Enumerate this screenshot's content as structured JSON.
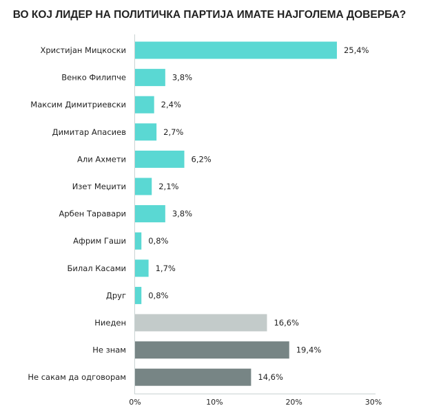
{
  "chart_data": {
    "type": "bar",
    "orientation": "horizontal",
    "title": "ВО КОЈ ЛИДЕР НА ПОЛИТИЧКА ПАРТИЈА ИМАТЕ НАЈГОЛЕМА ДОВЕРБА?",
    "xlabel": "",
    "ylabel": "",
    "xlim": [
      0,
      30
    ],
    "xticks": [
      0,
      10,
      20,
      30
    ],
    "xtick_labels": [
      "0%",
      "10%",
      "20%",
      "30%"
    ],
    "grid": false,
    "categories": [
      "Христијан Мицкоски",
      "Венко Филипче",
      "Максим Димитриевски",
      "Димитар Апасиев",
      "Али Ахмети",
      "Изет Меџити",
      "Арбен Таравари",
      "Африм Гаши",
      "Билал Касами",
      "Друг",
      "Ниеден",
      "Не знам",
      "Не сакам да одговорам"
    ],
    "values": [
      25.4,
      3.8,
      2.4,
      2.7,
      6.2,
      2.1,
      3.8,
      0.8,
      1.7,
      0.8,
      16.6,
      19.4,
      14.6
    ],
    "labels": [
      "25,4%",
      "3,8%",
      "2,4%",
      "2,7%",
      "6,2%",
      "2,1%",
      "3,8%",
      "0,8%",
      "1,7%",
      "0,8%",
      "16,6%",
      "19,4%",
      "14,6%"
    ],
    "colors": [
      "#5ad8d3",
      "#5ad8d3",
      "#5ad8d3",
      "#5ad8d3",
      "#5ad8d3",
      "#5ad8d3",
      "#5ad8d3",
      "#5ad8d3",
      "#5ad8d3",
      "#5ad8d3",
      "#c3cbca",
      "#778585",
      "#778585"
    ]
  }
}
